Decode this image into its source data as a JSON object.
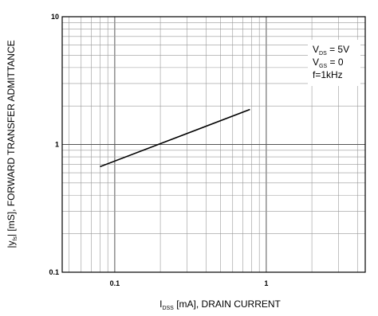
{
  "chart_data": {
    "type": "line",
    "title": "",
    "xlabel": {
      "prefix": "I",
      "sub": "DSS",
      "suffix": " [mA], DRAIN CURRENT"
    },
    "ylabel": {
      "prefix": "|y",
      "sub": "fs",
      "suffix": "| [mS], FORWARD TRANSFER ADMITTANCE"
    },
    "xscale": "log",
    "yscale": "log",
    "xlim": [
      0.045,
      4.5
    ],
    "ylim": [
      0.1,
      10
    ],
    "grid": true,
    "x_ticks": [
      {
        "value": 0.1,
        "label": "0.1"
      },
      {
        "value": 1,
        "label": "1"
      }
    ],
    "y_ticks": [
      {
        "value": 0.1,
        "label": "0.1"
      },
      {
        "value": 1,
        "label": "1"
      },
      {
        "value": 10,
        "label": "10"
      }
    ],
    "series": [
      {
        "x": [
          0.08,
          0.78
        ],
        "y": [
          0.67,
          1.88
        ]
      }
    ],
    "conditions": [
      {
        "prefix": "V",
        "sub": "DS",
        "suffix": " = 5V"
      },
      {
        "prefix": "V",
        "sub": "GS",
        "suffix": " = 0"
      },
      {
        "prefix": "f=1kHz",
        "sub": "",
        "suffix": ""
      }
    ],
    "colors": {
      "line": "#000000",
      "grid": "#999999",
      "frame": "#000000"
    }
  }
}
